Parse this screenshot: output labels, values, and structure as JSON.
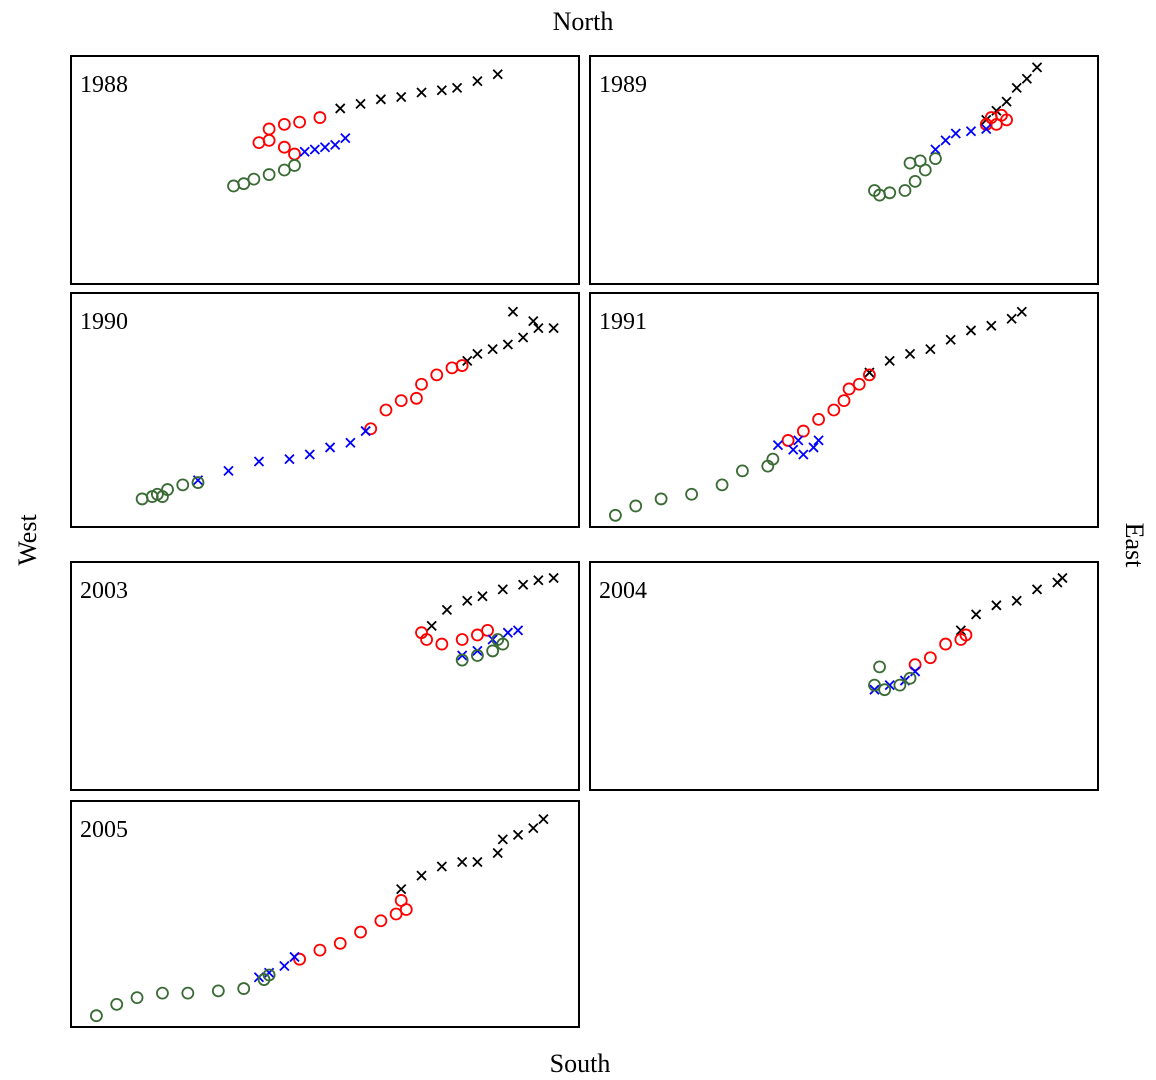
{
  "chart_data": {
    "type": "scatter",
    "top_label": "North",
    "bottom_label": "South",
    "left_label": "West",
    "right_label": "East",
    "xlim": [
      0,
      100
    ],
    "ylim": [
      0,
      100
    ],
    "panels": [
      {
        "title": "1988",
        "series": [
          {
            "color": "#000000",
            "marker": "x",
            "x": [
              53,
              57,
              61,
              65,
              69,
              73,
              76,
              80,
              84
            ],
            "y": [
              77,
              79,
              81,
              82,
              84,
              85,
              86,
              89,
              92
            ]
          },
          {
            "color": "#ff0000",
            "marker": "o",
            "x": [
              49,
              45,
              42,
              39,
              37,
              39,
              42,
              44
            ],
            "y": [
              73,
              71,
              70,
              68,
              62,
              63,
              60,
              57
            ]
          },
          {
            "color": "#0000ff",
            "marker": "x",
            "x": [
              46,
              48,
              50,
              52,
              54
            ],
            "y": [
              58,
              59,
              60,
              61,
              64
            ]
          },
          {
            "color": "#3a6b35",
            "marker": "o",
            "x": [
              44,
              42,
              39,
              36,
              34,
              32
            ],
            "y": [
              52,
              50,
              48,
              46,
              44,
              43
            ]
          }
        ]
      },
      {
        "title": "1989",
        "series": [
          {
            "color": "#000000",
            "marker": "x",
            "x": [
              78,
              80,
              82,
              84,
              86,
              88
            ],
            "y": [
              72,
              76,
              80,
              86,
              90,
              95
            ]
          },
          {
            "color": "#ff0000",
            "marker": "o",
            "x": [
              78,
              79,
              81,
              82,
              80
            ],
            "y": [
              70,
              73,
              74,
              72,
              70
            ]
          },
          {
            "color": "#0000ff",
            "marker": "x",
            "x": [
              68,
              70,
              72,
              75,
              78
            ],
            "y": [
              59,
              63,
              66,
              67,
              68
            ]
          },
          {
            "color": "#3a6b35",
            "marker": "o",
            "x": [
              68,
              65,
              63,
              66,
              64,
              62,
              59,
              57,
              56
            ],
            "y": [
              55,
              54,
              53,
              50,
              45,
              41,
              40,
              39,
              41
            ]
          }
        ]
      },
      {
        "title": "1990",
        "series": [
          {
            "color": "#000000",
            "marker": "x",
            "x": [
              78,
              80,
              83,
              86,
              89,
              92,
              95,
              91,
              87
            ],
            "y": [
              71,
              74,
              76,
              78,
              81,
              85,
              85,
              88,
              92
            ]
          },
          {
            "color": "#ff0000",
            "marker": "o",
            "x": [
              59,
              62,
              65,
              68,
              69,
              72,
              75,
              77
            ],
            "y": [
              42,
              50,
              54,
              55,
              61,
              65,
              68,
              69
            ]
          },
          {
            "color": "#0000ff",
            "marker": "x",
            "x": [
              25,
              31,
              37,
              43,
              47,
              51,
              55,
              58
            ],
            "y": [
              20,
              24,
              28,
              29,
              31,
              34,
              36,
              41
            ]
          },
          {
            "color": "#3a6b35",
            "marker": "o",
            "x": [
              14,
              17,
              19,
              22,
              25,
              18,
              16
            ],
            "y": [
              12,
              14,
              16,
              18,
              19,
              13,
              13
            ]
          }
        ]
      },
      {
        "title": "1991",
        "series": [
          {
            "color": "#000000",
            "marker": "x",
            "x": [
              55,
              59,
              63,
              67,
              71,
              75,
              79,
              83,
              85
            ],
            "y": [
              66,
              71,
              74,
              76,
              80,
              84,
              86,
              89,
              92
            ]
          },
          {
            "color": "#ff0000",
            "marker": "o",
            "x": [
              39,
              42,
              45,
              48,
              50,
              51,
              53,
              55
            ],
            "y": [
              37,
              41,
              46,
              50,
              54,
              59,
              61,
              65
            ]
          },
          {
            "color": "#0000ff",
            "marker": "x",
            "x": [
              37,
              40,
              42,
              44,
              45,
              41
            ],
            "y": [
              35,
              33,
              31,
              34,
              37,
              37
            ]
          },
          {
            "color": "#3a6b35",
            "marker": "o",
            "x": [
              5,
              9,
              14,
              20,
              26,
              30,
              35,
              36
            ],
            "y": [
              5,
              9,
              12,
              14,
              18,
              24,
              26,
              29
            ]
          }
        ]
      },
      {
        "title": "2003",
        "series": [
          {
            "color": "#000000",
            "marker": "x",
            "x": [
              71,
              74,
              78,
              81,
              85,
              89,
              92,
              95
            ],
            "y": [
              72,
              79,
              83,
              85,
              88,
              90,
              92,
              93
            ]
          },
          {
            "color": "#ff0000",
            "marker": "o",
            "x": [
              69,
              70,
              73,
              77,
              80,
              82
            ],
            "y": [
              69,
              66,
              64,
              66,
              68,
              70
            ]
          },
          {
            "color": "#0000ff",
            "marker": "x",
            "x": [
              77,
              80,
              83,
              86,
              88
            ],
            "y": [
              59,
              61,
              66,
              69,
              70
            ]
          },
          {
            "color": "#3a6b35",
            "marker": "o",
            "x": [
              77,
              80,
              83,
              85,
              84
            ],
            "y": [
              57,
              59,
              61,
              64,
              66
            ]
          }
        ]
      },
      {
        "title": "2004",
        "series": [
          {
            "color": "#000000",
            "marker": "x",
            "x": [
              73,
              76,
              80,
              84,
              88,
              92,
              93
            ],
            "y": [
              70,
              77,
              81,
              83,
              88,
              91,
              93
            ]
          },
          {
            "color": "#ff0000",
            "marker": "o",
            "x": [
              64,
              67,
              70,
              73,
              74
            ],
            "y": [
              55,
              58,
              64,
              66,
              68
            ]
          },
          {
            "color": "#0000ff",
            "marker": "x",
            "x": [
              56,
              59,
              62,
              64
            ],
            "y": [
              44,
              46,
              48,
              52
            ]
          },
          {
            "color": "#3a6b35",
            "marker": "o",
            "x": [
              56,
              57,
              58,
              61,
              63
            ],
            "y": [
              46,
              54,
              44,
              46,
              49
            ]
          }
        ]
      },
      {
        "title": "2005",
        "series": [
          {
            "color": "#000000",
            "marker": "x",
            "x": [
              65,
              69,
              73,
              77,
              80,
              84,
              85,
              88,
              91,
              93
            ],
            "y": [
              61,
              67,
              71,
              73,
              73,
              77,
              83,
              85,
              88,
              92
            ]
          },
          {
            "color": "#ff0000",
            "marker": "o",
            "x": [
              45,
              49,
              53,
              57,
              61,
              64,
              66,
              65
            ],
            "y": [
              30,
              34,
              37,
              42,
              47,
              50,
              52,
              56
            ]
          },
          {
            "color": "#0000ff",
            "marker": "x",
            "x": [
              37,
              39,
              42,
              44
            ],
            "y": [
              22,
              24,
              27,
              31
            ]
          },
          {
            "color": "#3a6b35",
            "marker": "o",
            "x": [
              5,
              9,
              13,
              18,
              23,
              29,
              34,
              38,
              39
            ],
            "y": [
              5,
              10,
              13,
              15,
              15,
              16,
              17,
              21,
              23
            ]
          }
        ]
      }
    ]
  }
}
